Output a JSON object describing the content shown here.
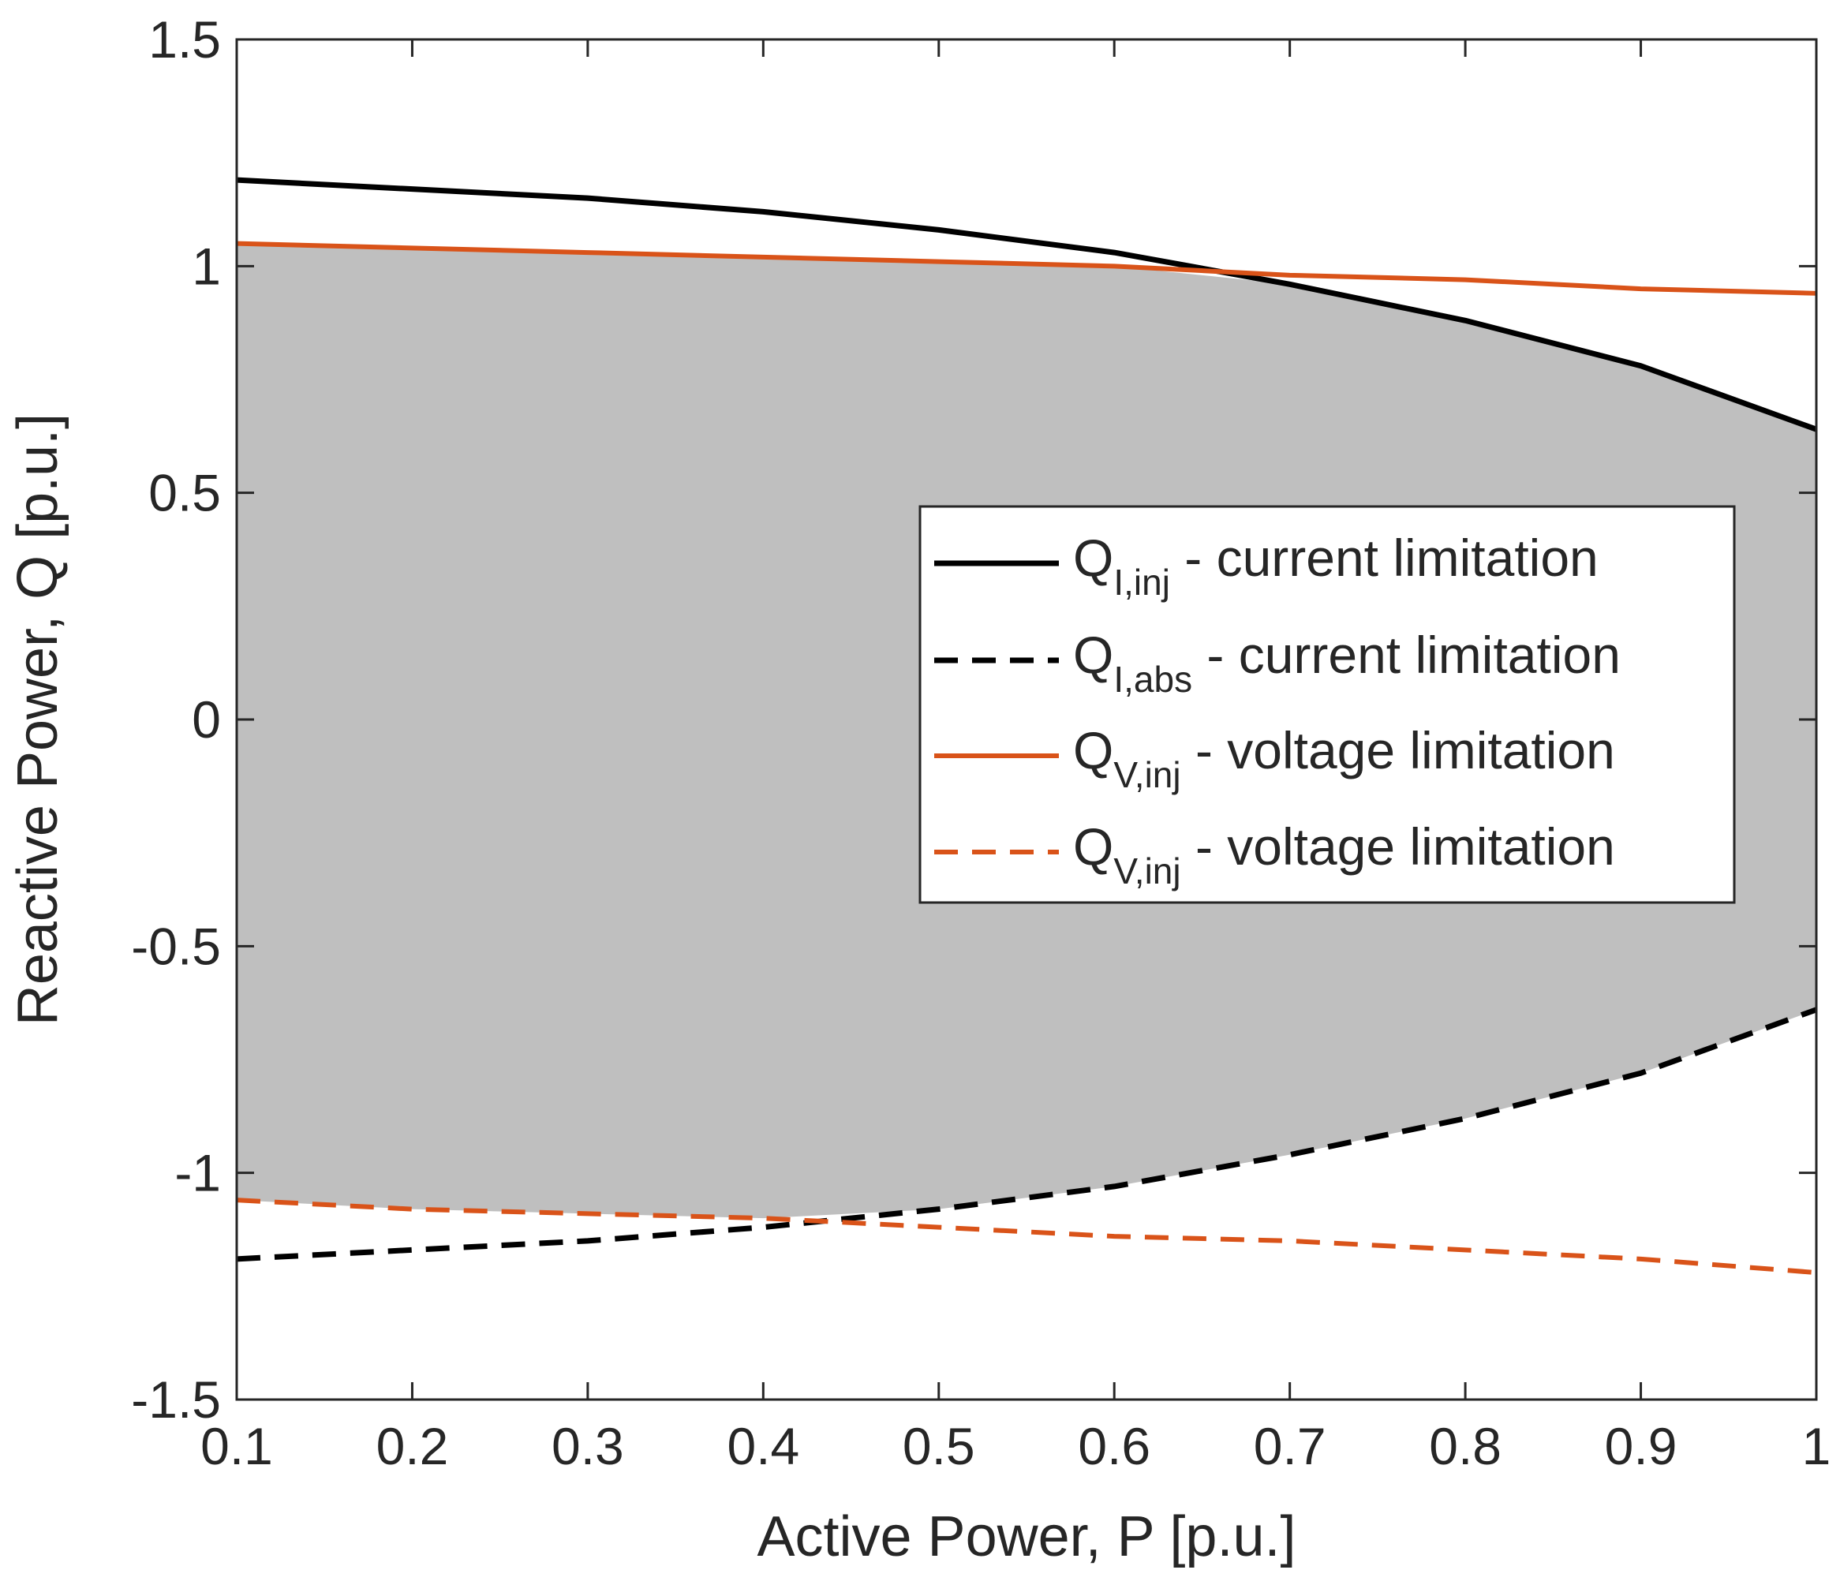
{
  "chart_data": {
    "type": "line",
    "title": "",
    "xlabel": "Active Power, P [p.u.]",
    "ylabel": "Reactive Power, Q [p.u.]",
    "xlim": [
      0.1,
      1.0
    ],
    "ylim": [
      -1.5,
      1.5
    ],
    "x_ticks": [
      "0.1",
      "0.2",
      "0.3",
      "0.4",
      "0.5",
      "0.6",
      "0.7",
      "0.8",
      "0.9",
      "1"
    ],
    "y_ticks": [
      "1.5",
      "1",
      "0.5",
      "0",
      "-0.5",
      "-1",
      "-1.5"
    ],
    "x": [
      0.1,
      0.2,
      0.3,
      0.4,
      0.5,
      0.6,
      0.7,
      0.8,
      0.9,
      1.0
    ],
    "series": [
      {
        "name": "Q I,inj - current limitation",
        "label_main": "Q",
        "label_sub": "I,inj",
        "label_rest": " - current limitation",
        "color": "#000000",
        "dash": "solid",
        "values": [
          1.19,
          1.17,
          1.15,
          1.12,
          1.08,
          1.03,
          0.96,
          0.88,
          0.78,
          0.64
        ]
      },
      {
        "name": "Q I,abs - current limitation",
        "label_main": "Q",
        "label_sub": "I,abs",
        "label_rest": " - current limitation",
        "color": "#000000",
        "dash": "dashed",
        "values": [
          -1.19,
          -1.17,
          -1.15,
          -1.12,
          -1.08,
          -1.03,
          -0.96,
          -0.88,
          -0.78,
          -0.64
        ]
      },
      {
        "name": "Q V,inj - voltage limitation",
        "label_main": "Q",
        "label_sub": "V,inj",
        "label_rest": " - voltage limitation",
        "color": "#d95319",
        "dash": "solid",
        "values": [
          1.05,
          1.04,
          1.03,
          1.02,
          1.01,
          1.0,
          0.98,
          0.97,
          0.95,
          0.94
        ]
      },
      {
        "name": "Q V,inj - voltage limitation",
        "label_main": "Q",
        "label_sub": "V,inj",
        "label_rest": " - voltage limitation",
        "color": "#d95319",
        "dash": "dashed",
        "values": [
          -1.06,
          -1.08,
          -1.09,
          -1.1,
          -1.12,
          -1.14,
          -1.15,
          -1.17,
          -1.19,
          -1.22
        ]
      }
    ],
    "shaded_region": {
      "color": "#bfbfbf",
      "upper": [
        1.05,
        1.04,
        1.03,
        1.02,
        1.01,
        1.0,
        0.96,
        0.88,
        0.78,
        0.64
      ],
      "lower": [
        -1.06,
        -1.08,
        -1.09,
        -1.1,
        -1.08,
        -1.03,
        -0.96,
        -0.88,
        -0.78,
        -0.64
      ]
    },
    "grid": false,
    "legend_position": "center-right"
  }
}
